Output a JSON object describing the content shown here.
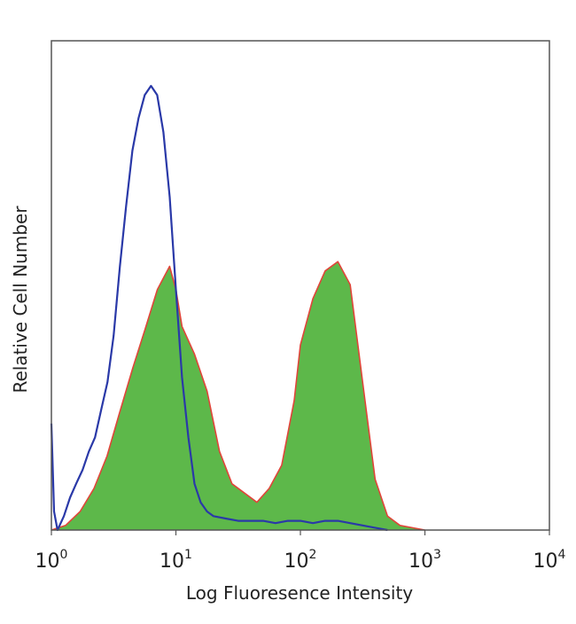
{
  "chart_data": {
    "type": "area",
    "title": "",
    "xlabel": "Log Fluoresence Intensity",
    "ylabel": "Relative Cell Number",
    "xscale": "log",
    "xlim": [
      1,
      10000
    ],
    "ylim": [
      0,
      1
    ],
    "grid": false,
    "legend": "none",
    "x_ticks": [
      {
        "base": "10",
        "exp": "0"
      },
      {
        "base": "10",
        "exp": "1"
      },
      {
        "base": "10",
        "exp": "2"
      },
      {
        "base": "10",
        "exp": "3"
      },
      {
        "base": "10",
        "exp": "4"
      }
    ],
    "series": [
      {
        "style": "filled",
        "fill_color": "#5db84a",
        "line_color": "#e0453a",
        "x": [
          1.0,
          1.3,
          1.7,
          2.2,
          2.8,
          3.5,
          4.5,
          5.6,
          7.1,
          8.9,
          10.0,
          11.2,
          14.1,
          17.8,
          22.4,
          28.2,
          35.5,
          44.7,
          56.2,
          70.8,
          89.1,
          100,
          126,
          158,
          200,
          251,
          316,
          398,
          501,
          631,
          794,
          1000
        ],
        "y": [
          0.0,
          0.01,
          0.04,
          0.09,
          0.16,
          0.25,
          0.35,
          0.43,
          0.52,
          0.57,
          0.52,
          0.44,
          0.38,
          0.3,
          0.17,
          0.1,
          0.08,
          0.06,
          0.09,
          0.14,
          0.28,
          0.4,
          0.5,
          0.56,
          0.58,
          0.53,
          0.32,
          0.11,
          0.03,
          0.01,
          0.005,
          0.0
        ]
      },
      {
        "style": "line",
        "line_color": "#2a39a8",
        "x": [
          1.0,
          1.05,
          1.12,
          1.26,
          1.41,
          1.58,
          1.78,
          2.0,
          2.24,
          2.51,
          2.82,
          3.16,
          3.55,
          3.98,
          4.47,
          5.01,
          5.62,
          6.31,
          7.08,
          7.94,
          8.91,
          10.0,
          11.2,
          12.6,
          14.1,
          15.8,
          17.8,
          20.0,
          25.1,
          31.6,
          39.8,
          50.1,
          63.1,
          79.4,
          100,
          126,
          158,
          200,
          251,
          316,
          398,
          501
        ],
        "y": [
          0.23,
          0.04,
          0.0,
          0.03,
          0.07,
          0.1,
          0.13,
          0.17,
          0.2,
          0.26,
          0.32,
          0.42,
          0.57,
          0.7,
          0.82,
          0.89,
          0.94,
          0.96,
          0.94,
          0.86,
          0.72,
          0.52,
          0.33,
          0.2,
          0.1,
          0.06,
          0.04,
          0.03,
          0.025,
          0.02,
          0.02,
          0.02,
          0.015,
          0.02,
          0.02,
          0.015,
          0.02,
          0.02,
          0.015,
          0.01,
          0.005,
          0.0
        ]
      }
    ]
  }
}
